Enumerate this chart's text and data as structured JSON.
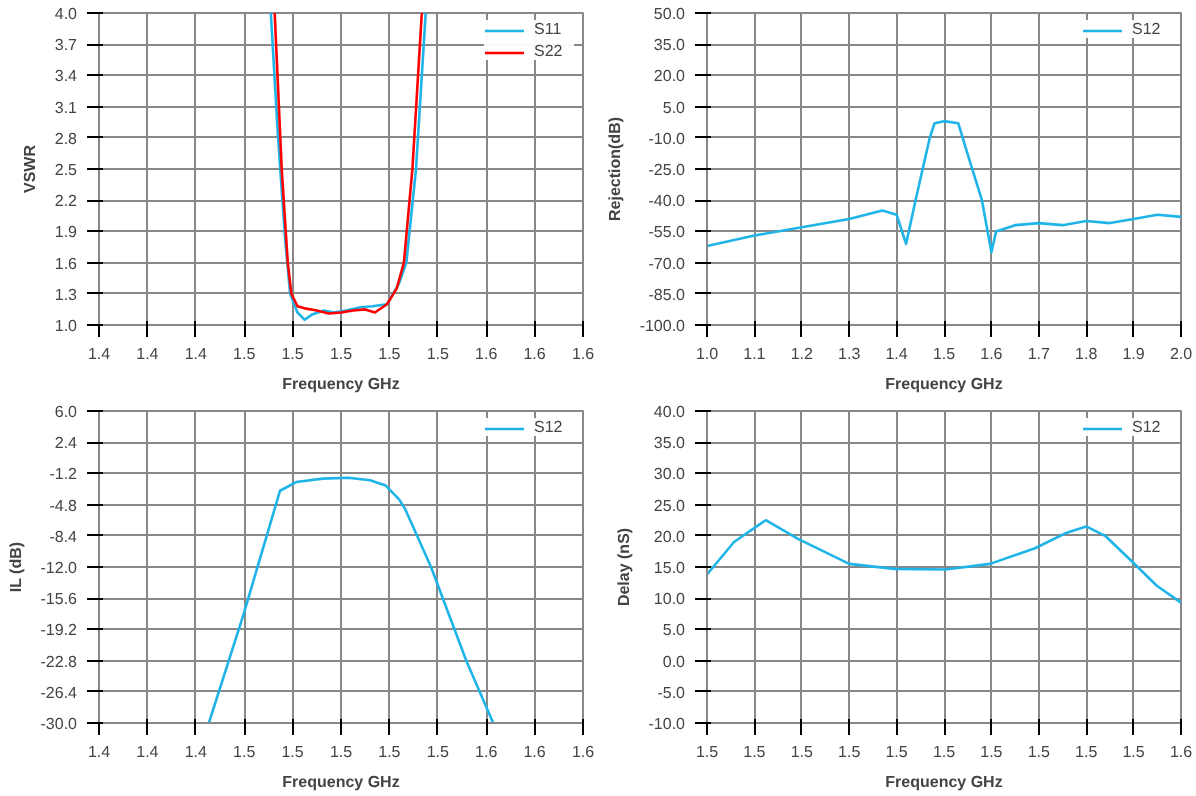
{
  "chart_data": [
    {
      "type": "line",
      "xlabel": "Frequency GHz",
      "ylabel": "VSWR",
      "grid": true,
      "legend": "top right",
      "xlim": [
        1.4,
        1.6
      ],
      "ylim": [
        1.0,
        4.0
      ],
      "xticks": [
        {
          "value": 1.4,
          "label": "1.4"
        },
        {
          "value": 1.42,
          "label": "1.4"
        },
        {
          "value": 1.44,
          "label": "1.4"
        },
        {
          "value": 1.46,
          "label": "1.5"
        },
        {
          "value": 1.48,
          "label": "1.5"
        },
        {
          "value": 1.5,
          "label": "1.5"
        },
        {
          "value": 1.52,
          "label": "1.5"
        },
        {
          "value": 1.54,
          "label": "1.5"
        },
        {
          "value": 1.56,
          "label": "1.6"
        },
        {
          "value": 1.58,
          "label": "1.6"
        },
        {
          "value": 1.6,
          "label": "1.6"
        }
      ],
      "yticks": [
        {
          "value": 1.0,
          "label": "1.0"
        },
        {
          "value": 1.3,
          "label": "1.3"
        },
        {
          "value": 1.6,
          "label": "1.6"
        },
        {
          "value": 1.9,
          "label": "1.9"
        },
        {
          "value": 2.2,
          "label": "2.2"
        },
        {
          "value": 2.5,
          "label": "2.5"
        },
        {
          "value": 2.8,
          "label": "2.8"
        },
        {
          "value": 3.1,
          "label": "3.1"
        },
        {
          "value": 3.4,
          "label": "3.4"
        },
        {
          "value": 3.7,
          "label": "3.7"
        },
        {
          "value": 4.0,
          "label": "4.0"
        }
      ],
      "series": [
        {
          "name": "S11",
          "color": "#1fb4e8",
          "x": [
            1.471,
            1.474,
            1.477,
            1.479,
            1.482,
            1.485,
            1.488,
            1.493,
            1.497,
            1.502,
            1.508,
            1.513,
            1.519,
            1.524,
            1.527,
            1.531,
            1.535
          ],
          "values": [
            4.0,
            2.8,
            1.8,
            1.3,
            1.12,
            1.05,
            1.1,
            1.14,
            1.12,
            1.14,
            1.17,
            1.18,
            1.2,
            1.4,
            1.6,
            2.5,
            4.0
          ]
        },
        {
          "name": "S22",
          "color": "#ff0000",
          "x": [
            1.4726,
            1.4755,
            1.478,
            1.4795,
            1.482,
            1.485,
            1.49,
            1.495,
            1.5,
            1.505,
            1.51,
            1.514,
            1.519,
            1.523,
            1.526,
            1.5295,
            1.5334
          ],
          "values": [
            4.0,
            2.5,
            1.6,
            1.3,
            1.18,
            1.16,
            1.14,
            1.11,
            1.12,
            1.14,
            1.15,
            1.12,
            1.2,
            1.35,
            1.6,
            2.5,
            4.0
          ]
        }
      ]
    },
    {
      "type": "line",
      "xlabel": "Frequency GHz",
      "ylabel": "Rejection(dB)",
      "grid": true,
      "legend": "top right",
      "xlim": [
        1.0,
        2.0
      ],
      "ylim": [
        -100,
        50
      ],
      "xticks": [
        {
          "value": 1.0,
          "label": "1.0"
        },
        {
          "value": 1.1,
          "label": "1.1"
        },
        {
          "value": 1.2,
          "label": "1.2"
        },
        {
          "value": 1.3,
          "label": "1.3"
        },
        {
          "value": 1.4,
          "label": "1.4"
        },
        {
          "value": 1.5,
          "label": "1.5"
        },
        {
          "value": 1.6,
          "label": "1.6"
        },
        {
          "value": 1.7,
          "label": "1.7"
        },
        {
          "value": 1.8,
          "label": "1.8"
        },
        {
          "value": 1.9,
          "label": "1.9"
        },
        {
          "value": 2.0,
          "label": "2.0"
        }
      ],
      "yticks": [
        {
          "value": -100,
          "label": "-100.0"
        },
        {
          "value": -85,
          "label": "-85.0"
        },
        {
          "value": -70,
          "label": "-70.0"
        },
        {
          "value": -55,
          "label": "-55.0"
        },
        {
          "value": -40,
          "label": "-40.0"
        },
        {
          "value": -25,
          "label": "-25.0"
        },
        {
          "value": -10,
          "label": "-10.0"
        },
        {
          "value": 5,
          "label": "5.0"
        },
        {
          "value": 20,
          "label": "20.0"
        },
        {
          "value": 35,
          "label": "35.0"
        },
        {
          "value": 50,
          "label": "50.0"
        }
      ],
      "series": [
        {
          "name": "S12",
          "color": "#1fb4e8",
          "x": [
            1.0,
            1.1,
            1.2,
            1.3,
            1.37,
            1.4,
            1.42,
            1.44,
            1.47,
            1.48,
            1.5,
            1.53,
            1.55,
            1.58,
            1.6,
            1.61,
            1.65,
            1.7,
            1.75,
            1.8,
            1.85,
            1.9,
            1.95,
            2.0
          ],
          "values": [
            -62,
            -57,
            -53,
            -49,
            -45,
            -47,
            -61,
            -40,
            -10,
            -3,
            -2,
            -3,
            -18,
            -40,
            -65,
            -55,
            -52,
            -51,
            -52,
            -50,
            -51,
            -49,
            -47,
            -48
          ]
        }
      ]
    },
    {
      "type": "line",
      "xlabel": "Frequency GHz",
      "ylabel": "IL (dB)",
      "grid": true,
      "legend": "top right",
      "xlim": [
        1.4,
        1.6
      ],
      "ylim": [
        -30,
        6
      ],
      "xticks": [
        {
          "value": 1.4,
          "label": "1.4"
        },
        {
          "value": 1.42,
          "label": "1.4"
        },
        {
          "value": 1.44,
          "label": "1.4"
        },
        {
          "value": 1.46,
          "label": "1.5"
        },
        {
          "value": 1.48,
          "label": "1.5"
        },
        {
          "value": 1.5,
          "label": "1.5"
        },
        {
          "value": 1.52,
          "label": "1.5"
        },
        {
          "value": 1.54,
          "label": "1.5"
        },
        {
          "value": 1.56,
          "label": "1.6"
        },
        {
          "value": 1.58,
          "label": "1.6"
        },
        {
          "value": 1.6,
          "label": "1.6"
        }
      ],
      "yticks": [
        {
          "value": -30,
          "label": "-30.0"
        },
        {
          "value": -26.4,
          "label": "-26.4"
        },
        {
          "value": -22.8,
          "label": "-22.8"
        },
        {
          "value": -19.2,
          "label": "-19.2"
        },
        {
          "value": -15.6,
          "label": "-15.6"
        },
        {
          "value": -12,
          "label": "-12.0"
        },
        {
          "value": -8.4,
          "label": "-8.4"
        },
        {
          "value": -4.8,
          "label": "-4.8"
        },
        {
          "value": -1.2,
          "label": "-1.2"
        },
        {
          "value": 2.4,
          "label": "2.4"
        },
        {
          "value": 6,
          "label": "6.0"
        }
      ],
      "series": [
        {
          "name": "S12",
          "color": "#1fb4e8",
          "x": [
            1.4454,
            1.4597,
            1.4748,
            1.4815,
            1.4925,
            1.503,
            1.512,
            1.5185,
            1.524,
            1.5265,
            1.5372,
            1.5519,
            1.5629
          ],
          "values": [
            -30,
            -17.5,
            -3.2,
            -2.2,
            -1.8,
            -1.7,
            -2.0,
            -2.6,
            -4.2,
            -5.3,
            -12,
            -22.9,
            -30
          ]
        }
      ]
    },
    {
      "type": "line",
      "xlabel": "Frequency GHz",
      "ylabel": "Delay (nS)",
      "grid": true,
      "legend": "top right",
      "xlim": [
        1.45,
        1.55
      ],
      "ylim": [
        -10,
        40
      ],
      "xticks": [
        {
          "value": 1.45,
          "label": "1.5"
        },
        {
          "value": 1.46,
          "label": "1.5"
        },
        {
          "value": 1.47,
          "label": "1.5"
        },
        {
          "value": 1.48,
          "label": "1.5"
        },
        {
          "value": 1.49,
          "label": "1.5"
        },
        {
          "value": 1.5,
          "label": "1.5"
        },
        {
          "value": 1.51,
          "label": "1.5"
        },
        {
          "value": 1.52,
          "label": "1.5"
        },
        {
          "value": 1.53,
          "label": "1.5"
        },
        {
          "value": 1.54,
          "label": "1.5"
        },
        {
          "value": 1.55,
          "label": "1.6"
        }
      ],
      "yticks": [
        {
          "value": -10,
          "label": "-10.0"
        },
        {
          "value": -5,
          "label": "-5.0"
        },
        {
          "value": 0,
          "label": "0.0"
        },
        {
          "value": 5,
          "label": "5.0"
        },
        {
          "value": 10,
          "label": "10.0"
        },
        {
          "value": 15,
          "label": "15.0"
        },
        {
          "value": 20,
          "label": "20.0"
        },
        {
          "value": 25,
          "label": "25.0"
        },
        {
          "value": 30,
          "label": "30.0"
        },
        {
          "value": 35,
          "label": "35.0"
        },
        {
          "value": 40,
          "label": "40.0"
        }
      ],
      "series": [
        {
          "name": "S12",
          "color": "#1fb4e8",
          "x": [
            1.45,
            1.4557,
            1.4624,
            1.4692,
            1.48,
            1.4895,
            1.5003,
            1.5097,
            1.5192,
            1.5259,
            1.53,
            1.534,
            1.5395,
            1.5449,
            1.55
          ],
          "values": [
            13.8,
            19,
            22.5,
            19.5,
            15.5,
            14.7,
            14.6,
            15.5,
            18,
            20.5,
            21.5,
            20,
            16,
            12,
            9.3
          ]
        }
      ]
    }
  ]
}
